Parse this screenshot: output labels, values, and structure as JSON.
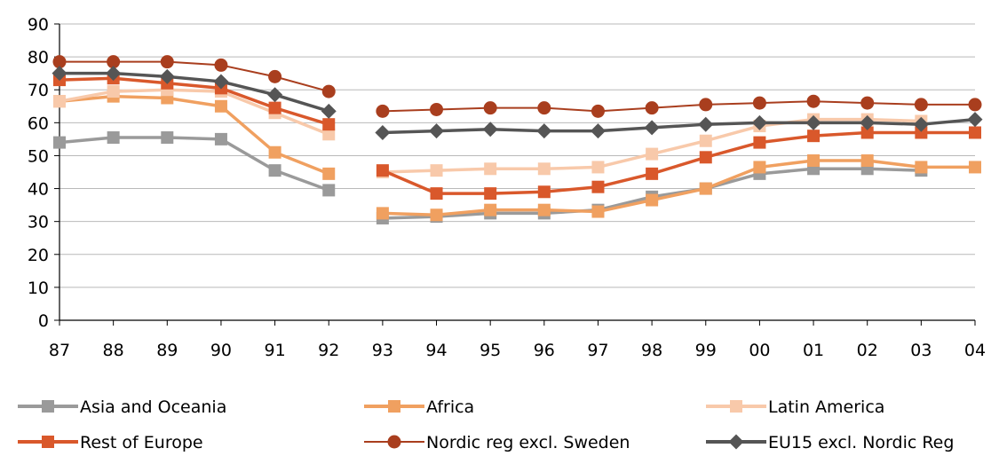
{
  "chart_data": {
    "type": "line",
    "title": "",
    "xlabel": "",
    "ylabel": "",
    "categories": [
      "87",
      "88",
      "89",
      "90",
      "91",
      "92",
      "93",
      "94",
      "95",
      "96",
      "97",
      "98",
      "99",
      "00",
      "01",
      "02",
      "03",
      "04"
    ],
    "ylim": [
      0,
      90
    ],
    "yticks": [
      0,
      10,
      20,
      30,
      40,
      50,
      60,
      70,
      80,
      90
    ],
    "grid": true,
    "legend_position": "bottom",
    "series": [
      {
        "name": "Asia and Oceania",
        "color": "#9a9a9a",
        "marker": "square",
        "values": [
          54,
          55.5,
          55.5,
          55,
          45.5,
          39.5,
          31,
          31.5,
          32.5,
          32.5,
          33.5,
          37.5,
          40,
          44.5,
          46,
          46,
          45.5,
          null
        ]
      },
      {
        "name": "Africa",
        "color": "#f0a060",
        "marker": "square",
        "values": [
          66.5,
          68,
          67.5,
          65,
          51,
          44.5,
          32.5,
          32,
          33.5,
          33.5,
          33,
          36.5,
          40,
          46.5,
          48.5,
          48.5,
          46.5,
          46.5
        ]
      },
      {
        "name": "Latin America",
        "color": "#f8c9aa",
        "marker": "square",
        "values": [
          66.5,
          69.5,
          70,
          69.5,
          63,
          56.5,
          45,
          45.5,
          46,
          46,
          46.5,
          50.5,
          54.5,
          59,
          61,
          61,
          60.5,
          null
        ]
      },
      {
        "name": "Rest of Europe",
        "color": "#d9582b",
        "marker": "square",
        "values": [
          73,
          73.5,
          72,
          70.5,
          64.5,
          59.5,
          45.5,
          38.5,
          38.5,
          39,
          40.5,
          44.5,
          49.5,
          54,
          56,
          57,
          57,
          57
        ]
      },
      {
        "name": "Nordic reg excl. Sweden",
        "color": "#a93e1e",
        "marker": "circle",
        "values": [
          78.5,
          78.5,
          78.5,
          77.5,
          74,
          69.5,
          63.5,
          64,
          64.5,
          64.5,
          63.5,
          64.5,
          65.5,
          66,
          66.5,
          66,
          65.5,
          65.5
        ]
      },
      {
        "name": "EU15 excl. Nordic Reg",
        "color": "#555555",
        "marker": "diamond",
        "values": [
          75,
          75,
          74,
          72.5,
          68.5,
          63.5,
          57,
          57.5,
          58,
          57.5,
          57.5,
          58.5,
          59.5,
          60,
          60,
          60,
          59.5,
          61
        ]
      }
    ]
  }
}
